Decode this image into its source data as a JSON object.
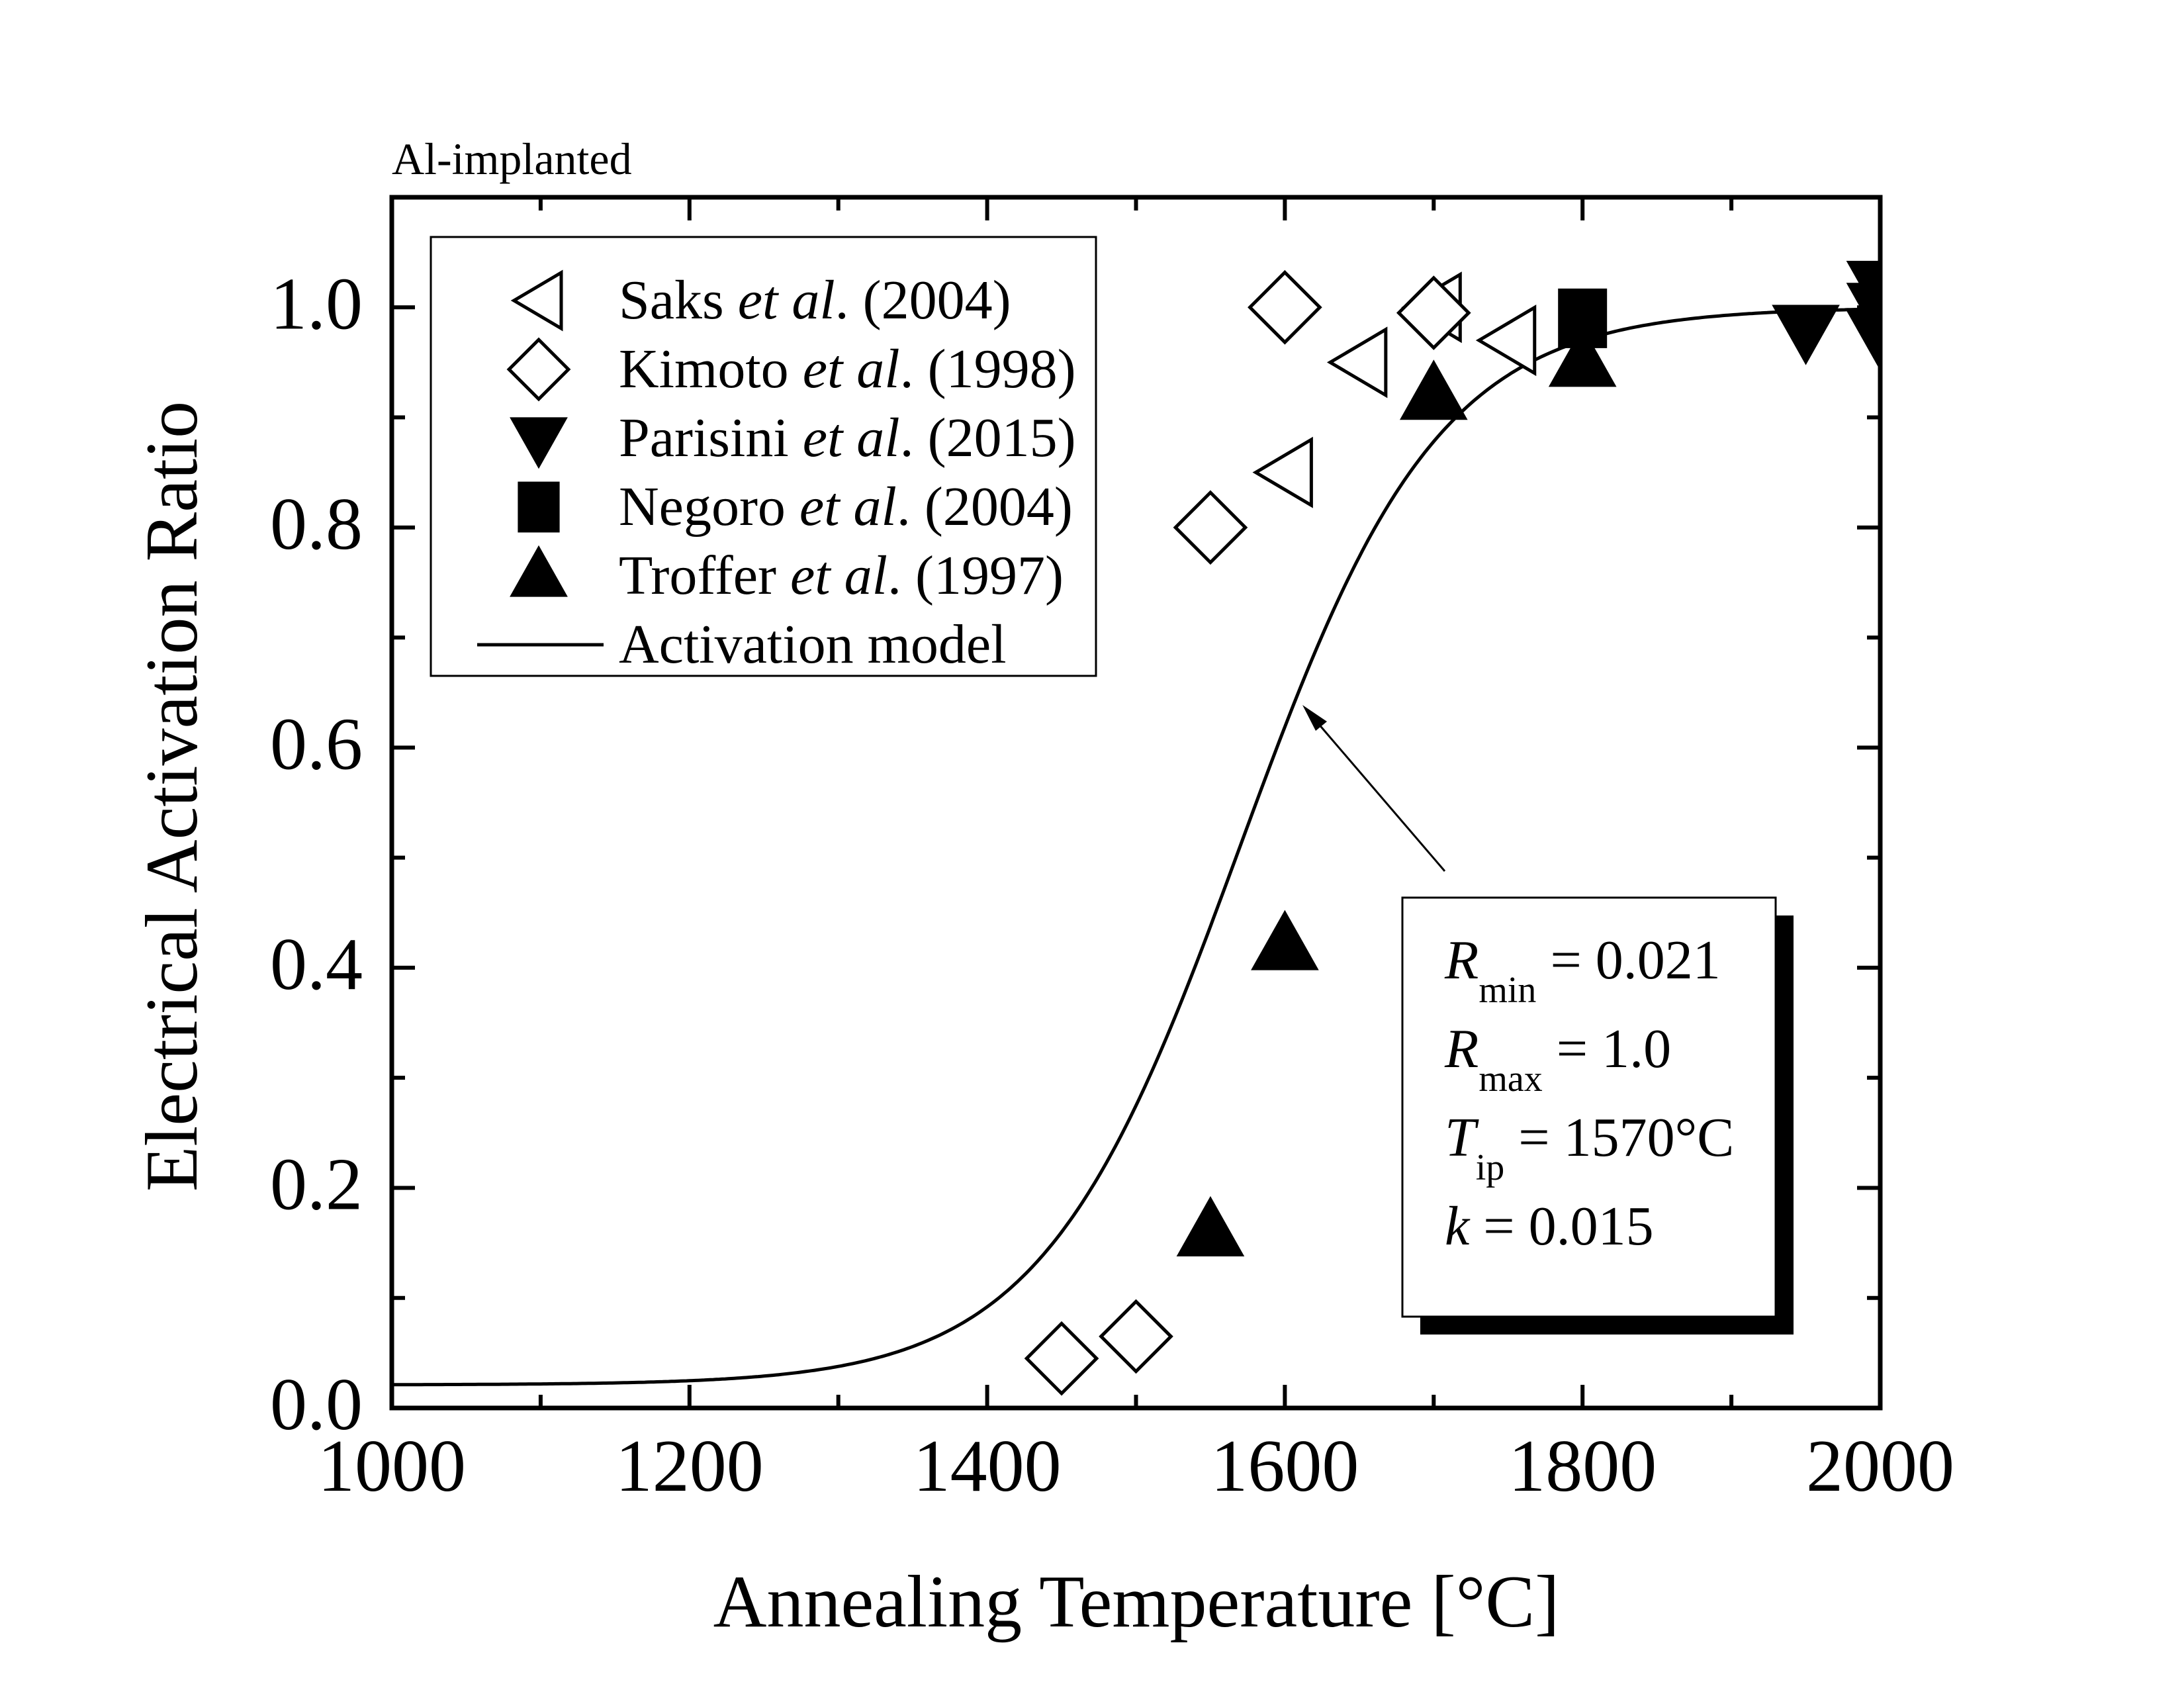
{
  "chart_data": {
    "type": "scatter",
    "corner_label": "Al-implanted",
    "xlabel": "Annealing Temperature [°C]",
    "ylabel": "Electrical Activation Ratio",
    "xlim": [
      1000,
      2000
    ],
    "ylim": [
      0.0,
      1.1
    ],
    "x_major_ticks": [
      1000,
      1200,
      1400,
      1600,
      1800,
      2000
    ],
    "x_minor_ticks": [
      1100,
      1300,
      1500,
      1700,
      1900
    ],
    "y_major_ticks": [
      0.0,
      0.2,
      0.4,
      0.6,
      0.8,
      1.0
    ],
    "y_minor_ticks": [
      0.1,
      0.3,
      0.5,
      0.7,
      0.9
    ],
    "x_tick_labels": [
      "1000",
      "1200",
      "1400",
      "1600",
      "1800",
      "2000"
    ],
    "y_tick_labels": [
      "0.0",
      "0.2",
      "0.4",
      "0.6",
      "0.8",
      "1.0"
    ],
    "grid": false,
    "legend_position": "top-left",
    "series": [
      {
        "name": "Saks et al. (2004)",
        "author": "Saks",
        "year": "(2004)",
        "marker": "triangle-left-open",
        "points": [
          [
            1600,
            0.85
          ],
          [
            1650,
            0.95
          ],
          [
            1700,
            1.0
          ],
          [
            1750,
            0.97
          ]
        ]
      },
      {
        "name": "Kimoto et al. (1998)",
        "author": "Kimoto",
        "year": "(1998)",
        "marker": "diamond-open",
        "points": [
          [
            1450,
            0.045
          ],
          [
            1500,
            0.065
          ],
          [
            1550,
            0.8
          ],
          [
            1600,
            1.0
          ],
          [
            1700,
            0.995
          ]
        ]
      },
      {
        "name": "Parisini et al. (2015)",
        "author": "Parisini",
        "year": "(2015)",
        "marker": "triangle-down-filled",
        "points": [
          [
            1950,
            0.98
          ],
          [
            2000,
            1.02
          ],
          [
            2000,
            1.0
          ],
          [
            2000,
            0.975
          ]
        ]
      },
      {
        "name": "Negoro et al. (2004)",
        "author": "Negoro",
        "year": "(2004)",
        "marker": "square-filled",
        "points": [
          [
            1800,
            0.99
          ]
        ]
      },
      {
        "name": "Troffer et al. (1997)",
        "author": "Troffer",
        "year": "(1997)",
        "marker": "triangle-up-filled",
        "points": [
          [
            1550,
            0.16
          ],
          [
            1600,
            0.42
          ],
          [
            1700,
            0.92
          ],
          [
            1800,
            0.95
          ]
        ]
      }
    ],
    "model": {
      "name": "Activation model",
      "function": "logistic",
      "R_min": 0.021,
      "R_max": 1.0,
      "T_ip": 1570,
      "k": 0.015
    },
    "annotation": {
      "lines": [
        {
          "sym": "R",
          "sub": "min",
          "rest": " = 0.021"
        },
        {
          "sym": "R",
          "sub": "max",
          "rest": " = 1.0"
        },
        {
          "sym": "T",
          "sub": "ip",
          "rest": " = 1570°C"
        },
        {
          "sym": "k",
          "sub": "",
          "rest": " = 0.015"
        }
      ],
      "arrow_target": [
        1600,
        0.65
      ]
    },
    "legend_italic_connector": "et al",
    "legend_period": ".",
    "colors": {
      "ink": "#000000",
      "background": "#ffffff"
    }
  }
}
